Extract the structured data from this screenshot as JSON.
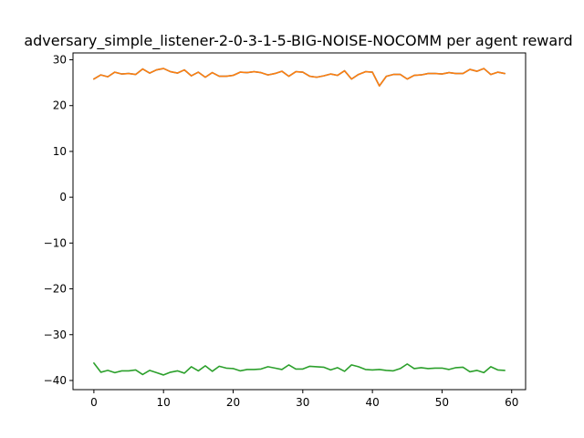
{
  "chart_data": {
    "type": "line",
    "title": "adversary_simple_listener-2-0-3-1-5-BIG-NOISE-NOCOMM per agent reward",
    "xlabel": "",
    "ylabel": "",
    "xlim": [
      -3,
      62
    ],
    "ylim": [
      -42,
      31.5
    ],
    "xticks": [
      0,
      10,
      20,
      30,
      40,
      50,
      60
    ],
    "yticks": [
      -40,
      -30,
      -20,
      -10,
      0,
      10,
      20,
      30
    ],
    "xtick_labels": [
      "0",
      "10",
      "20",
      "30",
      "40",
      "50",
      "60"
    ],
    "ytick_labels": [
      "−40",
      "−30",
      "−20",
      "−10",
      "0",
      "10",
      "20",
      "30"
    ],
    "grid": false,
    "legend": "none",
    "x": [
      0,
      1,
      2,
      3,
      4,
      5,
      6,
      7,
      8,
      9,
      10,
      11,
      12,
      13,
      14,
      15,
      16,
      17,
      18,
      19,
      20,
      21,
      22,
      23,
      24,
      25,
      26,
      27,
      28,
      29,
      30,
      31,
      32,
      33,
      34,
      35,
      36,
      37,
      38,
      39,
      40,
      41,
      42,
      43,
      44,
      45,
      46,
      47,
      48,
      49,
      50,
      51,
      52,
      53,
      54,
      55,
      56,
      57,
      58,
      59
    ],
    "series": [
      {
        "color": "#1f77b4",
        "values": [
          25.8,
          26.7,
          26.3,
          27.3,
          26.9,
          27.0,
          26.8,
          28.0,
          27.1,
          27.8,
          28.1,
          27.4,
          27.1,
          27.8,
          26.5,
          27.3,
          26.2,
          27.2,
          26.4,
          26.4,
          26.6,
          27.3,
          27.2,
          27.4,
          27.2,
          26.7,
          27.0,
          27.5,
          26.4,
          27.4,
          27.3,
          26.4,
          26.2,
          26.5,
          26.9,
          26.6,
          27.6,
          25.8,
          26.8,
          27.4,
          27.3,
          24.3,
          26.4,
          26.8,
          26.8,
          25.8,
          26.6,
          26.7,
          27.0,
          27.0,
          26.9,
          27.2,
          27.0,
          27.0,
          27.9,
          27.5,
          28.1,
          26.8,
          27.3,
          27.0
        ]
      },
      {
        "color": "#ff7f0e",
        "values": [
          25.8,
          26.7,
          26.3,
          27.3,
          26.9,
          27.0,
          26.8,
          28.0,
          27.1,
          27.8,
          28.1,
          27.4,
          27.1,
          27.8,
          26.5,
          27.3,
          26.2,
          27.2,
          26.4,
          26.4,
          26.6,
          27.3,
          27.2,
          27.4,
          27.2,
          26.7,
          27.0,
          27.5,
          26.4,
          27.4,
          27.3,
          26.4,
          26.2,
          26.5,
          26.9,
          26.6,
          27.6,
          25.8,
          26.8,
          27.4,
          27.3,
          24.3,
          26.4,
          26.8,
          26.8,
          25.8,
          26.6,
          26.7,
          27.0,
          27.0,
          26.9,
          27.2,
          27.0,
          27.0,
          27.9,
          27.5,
          28.1,
          26.8,
          27.3,
          27.0
        ]
      },
      {
        "color": "#2ca02c",
        "values": [
          -36.2,
          -38.2,
          -37.8,
          -38.3,
          -37.9,
          -37.9,
          -37.7,
          -38.7,
          -37.8,
          -38.3,
          -38.8,
          -38.2,
          -37.9,
          -38.4,
          -37.0,
          -37.9,
          -36.8,
          -38.0,
          -36.9,
          -37.3,
          -37.4,
          -37.9,
          -37.6,
          -37.6,
          -37.5,
          -37.0,
          -37.3,
          -37.6,
          -36.6,
          -37.5,
          -37.5,
          -36.9,
          -37.0,
          -37.1,
          -37.7,
          -37.2,
          -38.0,
          -36.6,
          -37.0,
          -37.6,
          -37.7,
          -37.6,
          -37.8,
          -37.9,
          -37.4,
          -36.4,
          -37.4,
          -37.2,
          -37.4,
          -37.3,
          -37.3,
          -37.6,
          -37.2,
          -37.1,
          -38.1,
          -37.8,
          -38.3,
          -37.0,
          -37.7,
          -37.8
        ]
      }
    ]
  }
}
